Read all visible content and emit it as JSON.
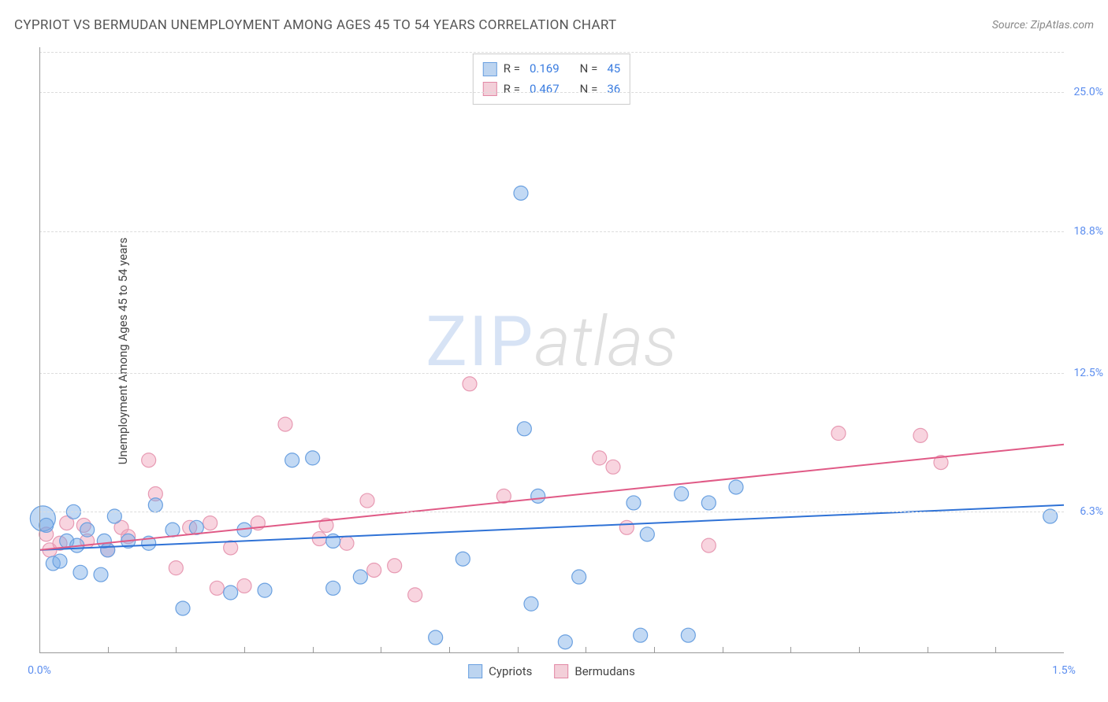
{
  "header": {
    "title": "CYPRIOT VS BERMUDAN UNEMPLOYMENT AMONG AGES 45 TO 54 YEARS CORRELATION CHART",
    "source_label": "Source: ZipAtlas.com"
  },
  "watermark": {
    "part1": "ZIP",
    "part2": "atlas"
  },
  "chart": {
    "type": "scatter",
    "y_axis_label": "Unemployment Among Ages 45 to 54 years",
    "background_color": "#ffffff",
    "grid_color": "#dcdcdc",
    "axis_color": "#999999",
    "label_color": "#5b8def",
    "xlim": [
      0.0,
      1.5
    ],
    "ylim": [
      0.0,
      27.0
    ],
    "x_ticks": [
      {
        "v": 0.0,
        "label": "0.0%"
      },
      {
        "v": 1.5,
        "label": "1.5%"
      }
    ],
    "x_minor_ticks": [
      0.1,
      0.2,
      0.3,
      0.4,
      0.5,
      0.6,
      0.7,
      0.8,
      0.9,
      1.0,
      1.1,
      1.2,
      1.3,
      1.4
    ],
    "y_ticks": [
      {
        "v": 6.3,
        "label": "6.3%"
      },
      {
        "v": 12.5,
        "label": "12.5%"
      },
      {
        "v": 18.8,
        "label": "18.8%"
      },
      {
        "v": 25.0,
        "label": "25.0%"
      }
    ],
    "series": [
      {
        "id": "cypriots",
        "label": "Cypriots",
        "color_fill": "rgba(120,170,230,0.45)",
        "color_stroke": "#6aa0e0",
        "swatch_fill": "#bcd4f0",
        "swatch_stroke": "#6aa0e0",
        "marker_radius": 9,
        "stats": {
          "R_label": "R =",
          "R": "0.169",
          "N_label": "N =",
          "N": "45"
        },
        "trend": {
          "x1": 0.0,
          "y1": 4.6,
          "x2": 1.5,
          "y2": 6.6,
          "color": "#2f72d6",
          "width": 2
        },
        "points": [
          {
            "x": 0.005,
            "y": 6.0,
            "r": 16
          },
          {
            "x": 0.01,
            "y": 5.7
          },
          {
            "x": 0.02,
            "y": 4.0
          },
          {
            "x": 0.03,
            "y": 4.1
          },
          {
            "x": 0.04,
            "y": 5.0
          },
          {
            "x": 0.05,
            "y": 6.3
          },
          {
            "x": 0.055,
            "y": 4.8
          },
          {
            "x": 0.06,
            "y": 3.6
          },
          {
            "x": 0.07,
            "y": 5.5
          },
          {
            "x": 0.09,
            "y": 3.5
          },
          {
            "x": 0.095,
            "y": 5.0
          },
          {
            "x": 0.1,
            "y": 4.6
          },
          {
            "x": 0.11,
            "y": 6.1
          },
          {
            "x": 0.13,
            "y": 5.0
          },
          {
            "x": 0.16,
            "y": 4.9
          },
          {
            "x": 0.17,
            "y": 6.6
          },
          {
            "x": 0.195,
            "y": 5.5
          },
          {
            "x": 0.21,
            "y": 2.0
          },
          {
            "x": 0.23,
            "y": 5.6
          },
          {
            "x": 0.28,
            "y": 2.7
          },
          {
            "x": 0.3,
            "y": 5.5
          },
          {
            "x": 0.33,
            "y": 2.8
          },
          {
            "x": 0.37,
            "y": 8.6
          },
          {
            "x": 0.4,
            "y": 8.7
          },
          {
            "x": 0.43,
            "y": 2.9
          },
          {
            "x": 0.43,
            "y": 5.0
          },
          {
            "x": 0.47,
            "y": 3.4
          },
          {
            "x": 0.58,
            "y": 0.7
          },
          {
            "x": 0.62,
            "y": 4.2
          },
          {
            "x": 0.705,
            "y": 20.5
          },
          {
            "x": 0.71,
            "y": 10.0
          },
          {
            "x": 0.72,
            "y": 2.2
          },
          {
            "x": 0.73,
            "y": 7.0
          },
          {
            "x": 0.77,
            "y": 0.5
          },
          {
            "x": 0.79,
            "y": 3.4
          },
          {
            "x": 0.87,
            "y": 6.7
          },
          {
            "x": 0.88,
            "y": 0.8
          },
          {
            "x": 0.89,
            "y": 5.3
          },
          {
            "x": 0.94,
            "y": 7.1
          },
          {
            "x": 0.95,
            "y": 0.8
          },
          {
            "x": 0.98,
            "y": 6.7
          },
          {
            "x": 1.02,
            "y": 7.4
          },
          {
            "x": 1.48,
            "y": 6.1
          }
        ]
      },
      {
        "id": "bermudans",
        "label": "Bermudans",
        "color_fill": "rgba(240,160,185,0.45)",
        "color_stroke": "#e79ab3",
        "swatch_fill": "#f3cfd9",
        "swatch_stroke": "#e288a5",
        "marker_radius": 9,
        "stats": {
          "R_label": "R =",
          "R": "0.467",
          "N_label": "N =",
          "N": "36"
        },
        "trend": {
          "x1": 0.0,
          "y1": 4.6,
          "x2": 1.5,
          "y2": 9.3,
          "color": "#e05a86",
          "width": 2
        },
        "points": [
          {
            "x": 0.01,
            "y": 5.3
          },
          {
            "x": 0.015,
            "y": 4.6
          },
          {
            "x": 0.03,
            "y": 4.9
          },
          {
            "x": 0.04,
            "y": 5.8
          },
          {
            "x": 0.065,
            "y": 5.7
          },
          {
            "x": 0.07,
            "y": 5.0
          },
          {
            "x": 0.1,
            "y": 4.6
          },
          {
            "x": 0.12,
            "y": 5.6
          },
          {
            "x": 0.13,
            "y": 5.2
          },
          {
            "x": 0.16,
            "y": 8.6
          },
          {
            "x": 0.17,
            "y": 7.1
          },
          {
            "x": 0.2,
            "y": 3.8
          },
          {
            "x": 0.22,
            "y": 5.6
          },
          {
            "x": 0.25,
            "y": 5.8
          },
          {
            "x": 0.26,
            "y": 2.9
          },
          {
            "x": 0.28,
            "y": 4.7
          },
          {
            "x": 0.3,
            "y": 3.0
          },
          {
            "x": 0.32,
            "y": 5.8
          },
          {
            "x": 0.36,
            "y": 10.2
          },
          {
            "x": 0.41,
            "y": 5.1
          },
          {
            "x": 0.42,
            "y": 5.7
          },
          {
            "x": 0.45,
            "y": 4.9
          },
          {
            "x": 0.48,
            "y": 6.8
          },
          {
            "x": 0.49,
            "y": 3.7
          },
          {
            "x": 0.52,
            "y": 3.9
          },
          {
            "x": 0.55,
            "y": 2.6
          },
          {
            "x": 0.63,
            "y": 12.0
          },
          {
            "x": 0.68,
            "y": 7.0
          },
          {
            "x": 0.82,
            "y": 8.7
          },
          {
            "x": 0.84,
            "y": 8.3
          },
          {
            "x": 0.86,
            "y": 5.6
          },
          {
            "x": 0.98,
            "y": 4.8
          },
          {
            "x": 1.17,
            "y": 9.8
          },
          {
            "x": 1.29,
            "y": 9.7
          },
          {
            "x": 1.32,
            "y": 8.5
          }
        ]
      }
    ]
  },
  "legend_bottom": {
    "items": [
      {
        "label": "Cypriots",
        "fill": "#bcd4f0",
        "stroke": "#6aa0e0"
      },
      {
        "label": "Bermudans",
        "fill": "#f3cfd9",
        "stroke": "#e288a5"
      }
    ]
  }
}
